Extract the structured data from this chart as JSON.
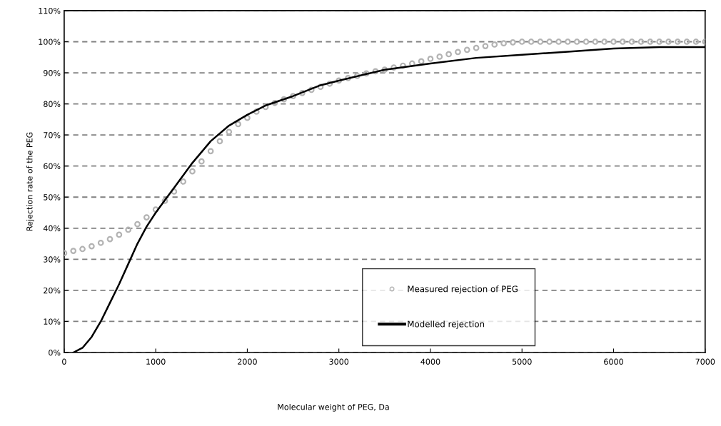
{
  "chart_data": {
    "type": "line",
    "xlabel": "Molecular weight of PEG, Da",
    "ylabel": "Rejection rate of the PEG",
    "xlim": [
      0,
      7000
    ],
    "xticks": [
      0,
      1000,
      2000,
      3000,
      4000,
      5000,
      6000,
      7000
    ],
    "ylim": [
      0,
      110
    ],
    "yticks": [
      {
        "value": 0,
        "label": "0%"
      },
      {
        "value": 10,
        "label": "10%"
      },
      {
        "value": 20,
        "label": "20%"
      },
      {
        "value": 30,
        "label": "30%"
      },
      {
        "value": 40,
        "label": "40%"
      },
      {
        "value": 50,
        "label": "50%"
      },
      {
        "value": 60,
        "label": "60%"
      },
      {
        "value": 70,
        "label": "70%"
      },
      {
        "value": 80,
        "label": "80%"
      },
      {
        "value": 90,
        "label": "90%"
      },
      {
        "value": 100,
        "label": "100%"
      },
      {
        "value": 110,
        "label": "110%"
      }
    ],
    "grid": "y",
    "legend": "bottom",
    "series": [
      {
        "name": "Measured rejection of PEG",
        "type": "scatter",
        "marker": "circle",
        "color": "#b3b3b3",
        "x": [
          0,
          100,
          200,
          300,
          400,
          500,
          600,
          700,
          800,
          900,
          1000,
          1100,
          1200,
          1300,
          1400,
          1500,
          1600,
          1700,
          1800,
          1900,
          2000,
          2100,
          2200,
          2300,
          2400,
          2500,
          2600,
          2700,
          2800,
          2900,
          3000,
          3100,
          3200,
          3300,
          3400,
          3500,
          3600,
          3700,
          3800,
          3900,
          4000,
          4100,
          4200,
          4300,
          4400,
          4500,
          4600,
          4700,
          4800,
          4900,
          5000,
          5100,
          5200,
          5300,
          5400,
          5500,
          5600,
          5700,
          5800,
          5900,
          6000,
          6100,
          6200,
          6300,
          6400,
          6500,
          6600,
          6700,
          6800,
          6900,
          7000
        ],
        "values": [
          32,
          32.7,
          33.3,
          34.2,
          35.3,
          36.5,
          37.9,
          39.5,
          41.3,
          43.5,
          46,
          48.8,
          51.8,
          55,
          58.3,
          61.5,
          64.8,
          68,
          71,
          73.5,
          75.5,
          77.5,
          79,
          80.3,
          81.5,
          82.5,
          83.5,
          84.5,
          85.5,
          86.5,
          87.5,
          88.3,
          89,
          89.8,
          90.5,
          91,
          91.7,
          92.3,
          93,
          93.7,
          94.5,
          95.2,
          96,
          96.7,
          97.4,
          98,
          98.6,
          99.1,
          99.5,
          99.8,
          100,
          100,
          100,
          100,
          100,
          100,
          100,
          100,
          100,
          100,
          100,
          100,
          100,
          100,
          100,
          100,
          100,
          100,
          100,
          100,
          100
        ]
      },
      {
        "name": "Modelled rejection",
        "line_style": "solid",
        "color": "#000000",
        "x": [
          100,
          200,
          300,
          400,
          500,
          600,
          700,
          800,
          900,
          1000,
          1100,
          1200,
          1300,
          1400,
          1500,
          1600,
          1800,
          2000,
          2200,
          2500,
          2800,
          3000,
          3500,
          4000,
          4500,
          5000,
          5500,
          6000,
          6500,
          7000
        ],
        "values": [
          0,
          1.5,
          5,
          10,
          16,
          22,
          28.5,
          35,
          40.5,
          45,
          49,
          53,
          57,
          61,
          64.5,
          68,
          73,
          76.5,
          79.5,
          82.5,
          86,
          87.5,
          91,
          93,
          94.8,
          95.8,
          96.8,
          97.8,
          98.3,
          98.3
        ]
      }
    ]
  }
}
